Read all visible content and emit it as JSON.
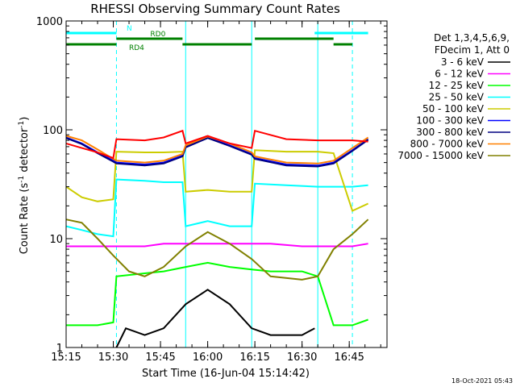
{
  "chart_data": {
    "type": "line",
    "title": "RHESSI Observing Summary Count Rates",
    "xlabel": "Start Time (16-Jun-04 15:14:42)",
    "ylabel": "Count Rate (s⁻¹ detector⁻¹)",
    "ylabel_parts": {
      "base": "Count Rate (s",
      "sup1": "-1",
      "mid": " detector",
      "sup2": "-1",
      "end": ")"
    },
    "yscale": "log",
    "ylim": [
      1,
      1000
    ],
    "xlim": [
      "15:15",
      "16:57"
    ],
    "x_ticks": [
      "15:15",
      "15:30",
      "15:45",
      "16:00",
      "16:15",
      "16:30",
      "16:45"
    ],
    "y_ticks": [
      "1",
      "10",
      "100",
      "1000"
    ],
    "timestamp": "18-Oct-2021 05:43",
    "legend_header": [
      "Det 1,3,4,5,6,9,",
      "FDecim 1, Att 0"
    ],
    "legend_position": "right",
    "segment_boundaries": [
      "15:31",
      "15:53",
      "16:14",
      "16:35",
      "16:46"
    ],
    "state_bars": [
      {
        "label": "N",
        "color": "#00ffff",
        "intervals": [
          [
            "15:15",
            "15:31"
          ],
          [
            "16:34",
            "16:51"
          ]
        ]
      },
      {
        "label": "RD0",
        "color": "#008000",
        "intervals": [
          [
            "15:31",
            "15:52"
          ],
          [
            "16:15",
            "16:40"
          ]
        ]
      },
      {
        "label": "RD4",
        "color": "#008000",
        "intervals": [
          [
            "15:15",
            "15:31"
          ],
          [
            "15:52",
            "16:14"
          ],
          [
            "16:40",
            "16:46"
          ]
        ]
      }
    ],
    "series": [
      {
        "name": "3 - 6 keV",
        "color": "#000000",
        "x": [
          "15:15",
          "15:30",
          "15:31",
          "15:34",
          "15:40",
          "15:46",
          "15:53",
          "16:00",
          "16:07",
          "16:14",
          "16:20",
          "16:30",
          "16:34",
          "16:35",
          "16:40",
          "16:46",
          "16:51"
        ],
        "y": [
          null,
          null,
          1.0,
          1.5,
          1.3,
          1.5,
          2.5,
          3.4,
          2.5,
          1.5,
          1.3,
          1.3,
          1.5,
          null,
          null,
          null,
          null
        ]
      },
      {
        "name": "6 - 12 keV",
        "color": "#ff00ff",
        "x": [
          "15:15",
          "15:20",
          "15:25",
          "15:30",
          "15:31",
          "15:40",
          "15:46",
          "15:53",
          "16:00",
          "16:07",
          "16:14",
          "16:20",
          "16:30",
          "16:35",
          "16:40",
          "16:46",
          "16:51"
        ],
        "y": [
          8.5,
          8.5,
          8.5,
          8.5,
          8.5,
          8.5,
          9.0,
          9.0,
          9.0,
          9.0,
          9.0,
          9.0,
          8.5,
          8.5,
          8.5,
          8.5,
          9.0
        ]
      },
      {
        "name": "12 - 25 keV",
        "color": "#00ff00",
        "x": [
          "15:15",
          "15:20",
          "15:25",
          "15:30",
          "15:31",
          "15:40",
          "15:46",
          "15:53",
          "16:00",
          "16:07",
          "16:14",
          "16:20",
          "16:30",
          "16:35",
          "16:40",
          "16:46",
          "16:51"
        ],
        "y": [
          1.6,
          1.6,
          1.6,
          1.7,
          4.5,
          4.8,
          5.0,
          5.5,
          6.0,
          5.5,
          5.2,
          5.0,
          5.0,
          4.5,
          1.6,
          1.6,
          1.8
        ]
      },
      {
        "name": "25 - 50 keV",
        "color": "#00ffff",
        "x": [
          "15:15",
          "15:20",
          "15:25",
          "15:30",
          "15:31",
          "15:40",
          "15:46",
          "15:52",
          "15:53",
          "16:00",
          "16:07",
          "16:14",
          "16:15",
          "16:25",
          "16:35",
          "16:40",
          "16:46",
          "16:51"
        ],
        "y": [
          13,
          12,
          11,
          10.5,
          35,
          34,
          33,
          33,
          13,
          14.5,
          13,
          13,
          32,
          31,
          30,
          30,
          30,
          31
        ]
      },
      {
        "name": "50 - 100 keV",
        "color": "#cccc00",
        "x": [
          "15:15",
          "15:20",
          "15:25",
          "15:30",
          "15:31",
          "15:40",
          "15:46",
          "15:52",
          "15:53",
          "16:00",
          "16:07",
          "16:14",
          "16:15",
          "16:25",
          "16:35",
          "16:40",
          "16:46",
          "16:51"
        ],
        "y": [
          30,
          24,
          22,
          23,
          63,
          62,
          62,
          63,
          27,
          28,
          27,
          27,
          65,
          63,
          63,
          61,
          18,
          21
        ]
      },
      {
        "name": "100 - 300 keV",
        "color": "#0000ff",
        "x": [
          "15:15",
          "15:20",
          "15:25",
          "15:30",
          "15:31",
          "15:40",
          "15:46",
          "15:52",
          "15:53",
          "16:00",
          "16:07",
          "16:14",
          "16:15",
          "16:25",
          "16:35",
          "16:40",
          "16:46",
          "16:51"
        ],
        "y": [
          85,
          75,
          62,
          52,
          50,
          48,
          50,
          58,
          70,
          85,
          72,
          60,
          55,
          48,
          47,
          50,
          65,
          82
        ]
      },
      {
        "name": "300 - 800 keV",
        "color": "#000080",
        "x": [
          "15:15",
          "15:20",
          "15:25",
          "15:30",
          "15:31",
          "15:40",
          "15:46",
          "15:52",
          "15:53",
          "16:00",
          "16:07",
          "16:14",
          "16:15",
          "16:25",
          "16:35",
          "16:40",
          "16:46",
          "16:51"
        ],
        "y": [
          84,
          74,
          61,
          51,
          49,
          47,
          49,
          57,
          69,
          84,
          71,
          59,
          54,
          47,
          46,
          49,
          64,
          81
        ]
      },
      {
        "name": "800 - 7000 keV",
        "color": "#ff8000",
        "x": [
          "15:15",
          "15:20",
          "15:25",
          "15:30",
          "15:31",
          "15:40",
          "15:46",
          "15:52",
          "15:53",
          "16:00",
          "16:07",
          "16:14",
          "16:15",
          "16:25",
          "16:35",
          "16:40",
          "16:46",
          "16:51"
        ],
        "y": [
          88,
          80,
          66,
          54,
          52,
          50,
          52,
          60,
          72,
          87,
          75,
          62,
          57,
          50,
          49,
          52,
          68,
          85
        ]
      },
      {
        "name": "7000 - 15000 keV",
        "color": "#808000",
        "x": [
          "15:15",
          "15:20",
          "15:25",
          "15:30",
          "15:35",
          "15:40",
          "15:46",
          "15:53",
          "16:00",
          "16:07",
          "16:14",
          "16:20",
          "16:30",
          "16:35",
          "16:40",
          "16:46",
          "16:51"
        ],
        "y": [
          15,
          14,
          10,
          7.0,
          5.0,
          4.5,
          5.5,
          8.5,
          11.5,
          9.0,
          6.5,
          4.5,
          4.2,
          4.5,
          8.0,
          11,
          15
        ]
      },
      {
        "name": "",
        "color": "#ff0000",
        "x": [
          "15:15",
          "15:20",
          "15:25",
          "15:30",
          "15:31",
          "15:40",
          "15:46",
          "15:52",
          "15:53",
          "16:00",
          "16:07",
          "16:14",
          "16:15",
          "16:25",
          "16:35",
          "16:40",
          "16:46",
          "16:51"
        ],
        "y": [
          75,
          68,
          62,
          55,
          82,
          80,
          85,
          98,
          75,
          88,
          75,
          68,
          98,
          82,
          80,
          80,
          80,
          78
        ]
      }
    ]
  }
}
